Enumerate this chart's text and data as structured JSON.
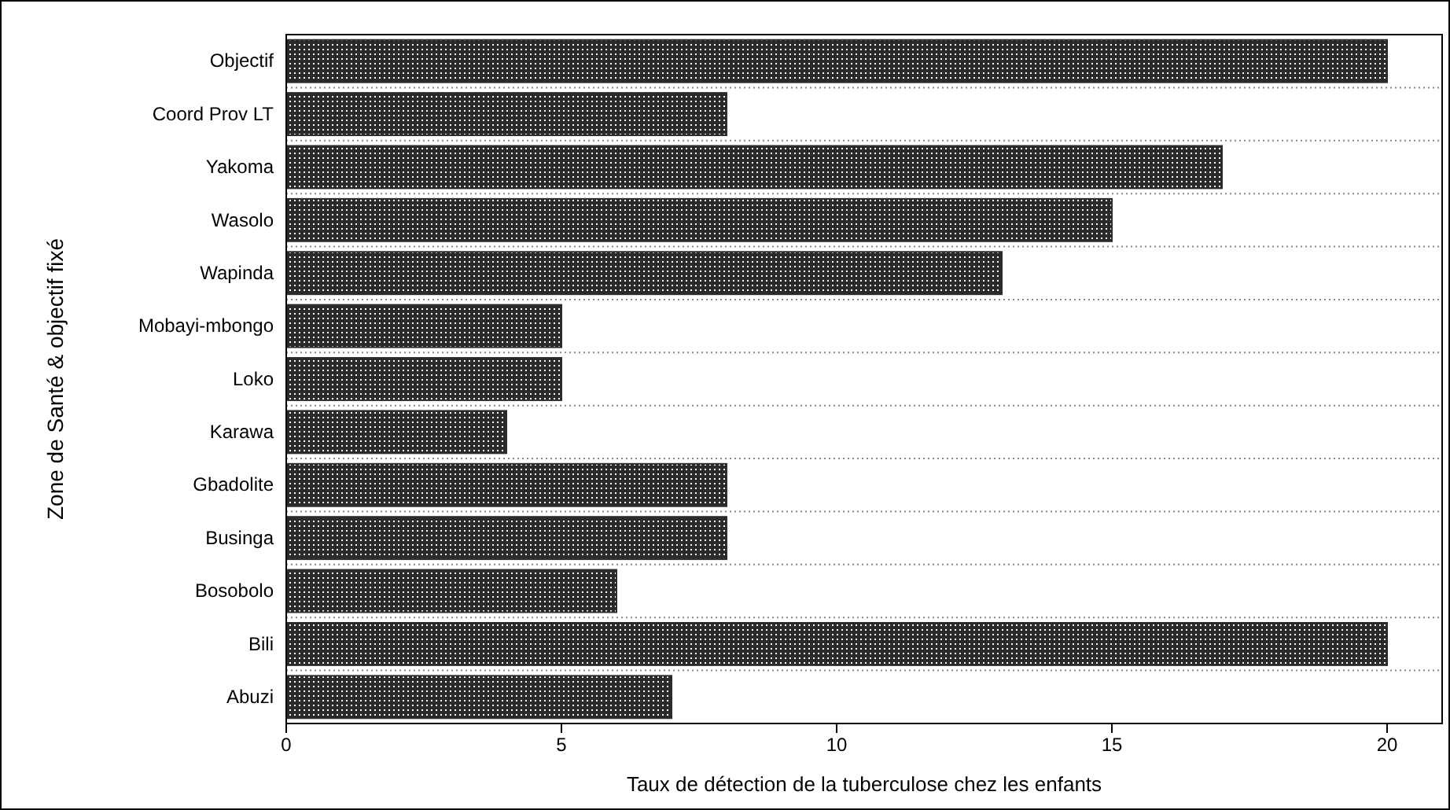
{
  "chart_data": {
    "type": "bar",
    "orientation": "horizontal",
    "xlabel": "Taux de détection de la tuberculose chez les enfants",
    "ylabel": "Zone de Santé & objectif fixé",
    "categories": [
      "Objectif",
      "Coord Prov LT",
      "Yakoma",
      "Wasolo",
      "Wapinda",
      "Mobayi-mbongo",
      "Loko",
      "Karawa",
      "Gbadolite",
      "Businga",
      "Bosobolo",
      "Bili",
      "Abuzi"
    ],
    "values": [
      20,
      8,
      17,
      15,
      13,
      5,
      5,
      4,
      8,
      8,
      6,
      20,
      7
    ],
    "color": "#2b2b2b",
    "xlim": [
      0,
      21
    ],
    "xticks": [
      0,
      5,
      10,
      15,
      20
    ],
    "grid": "y"
  }
}
